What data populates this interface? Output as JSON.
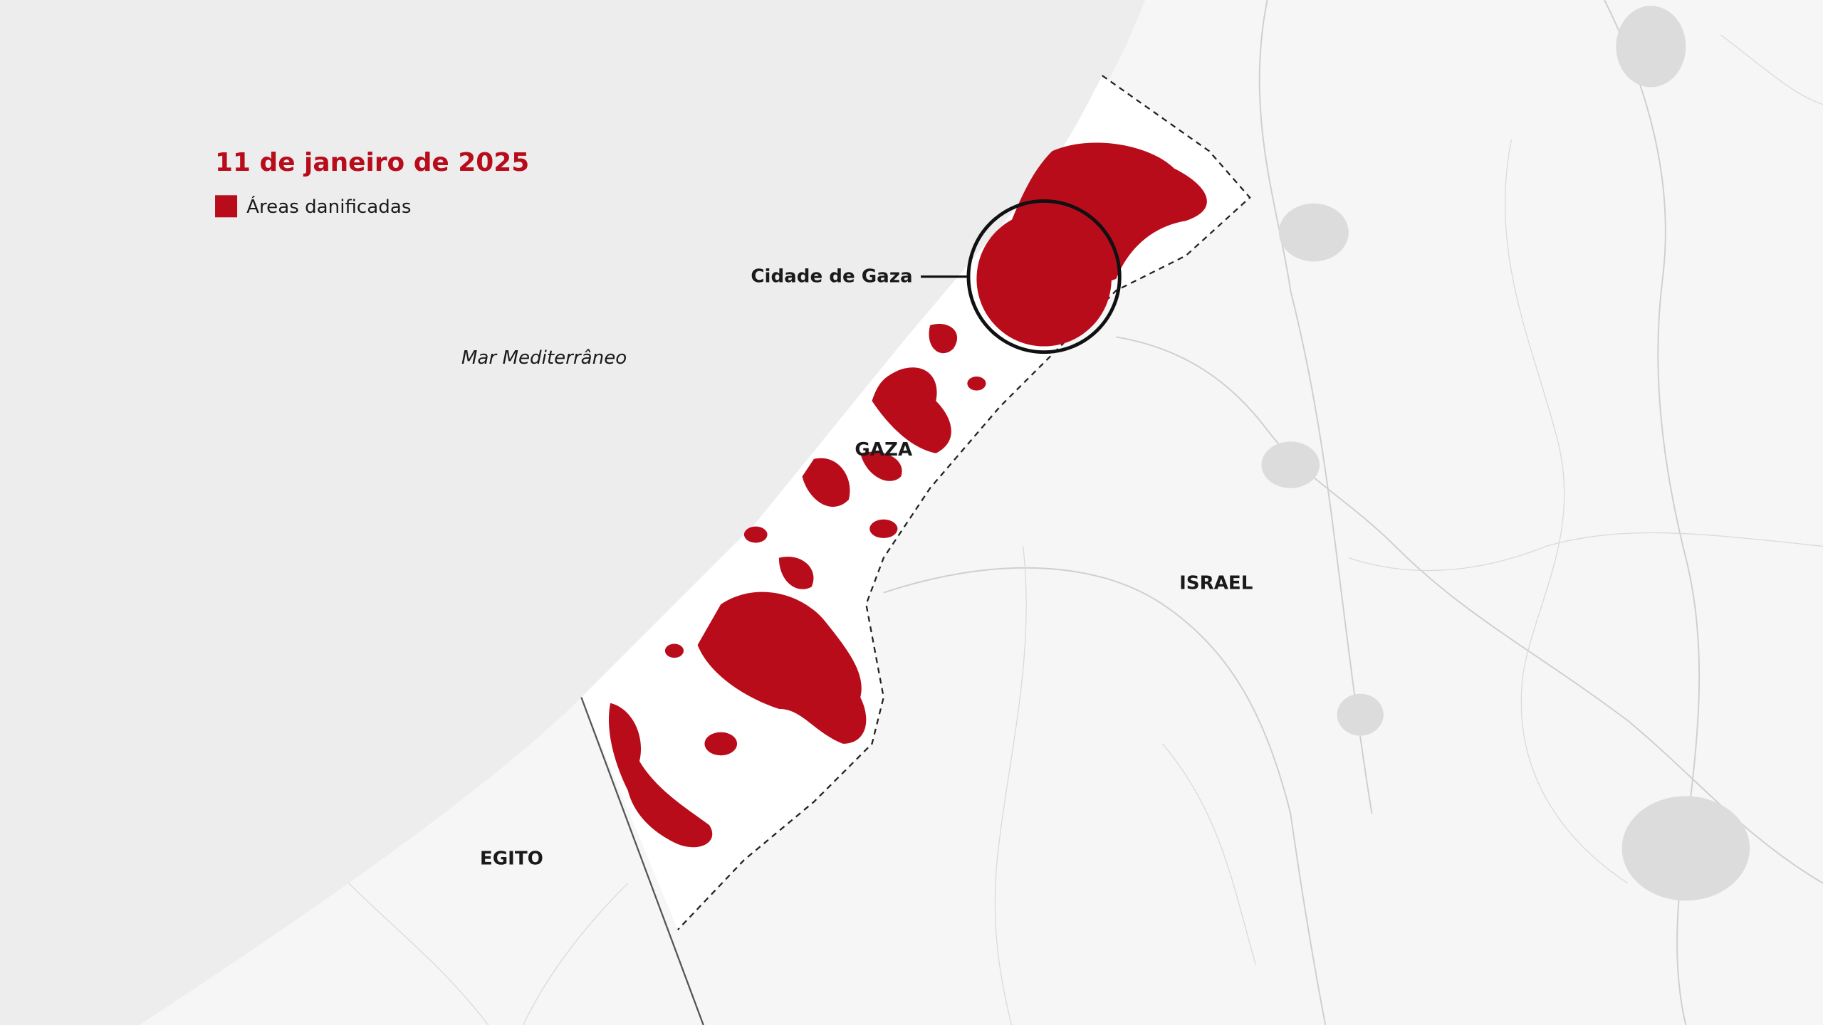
{
  "header": {
    "title": "11 de janeiro de 2025"
  },
  "legend": {
    "label": "Áreas danificadas"
  },
  "labels": {
    "city": "Cidade de Gaza",
    "sea": "Mar Mediterrâneo",
    "gaza": "GAZA",
    "israel": "ISRAEL",
    "egypt": "EGITO"
  }
}
